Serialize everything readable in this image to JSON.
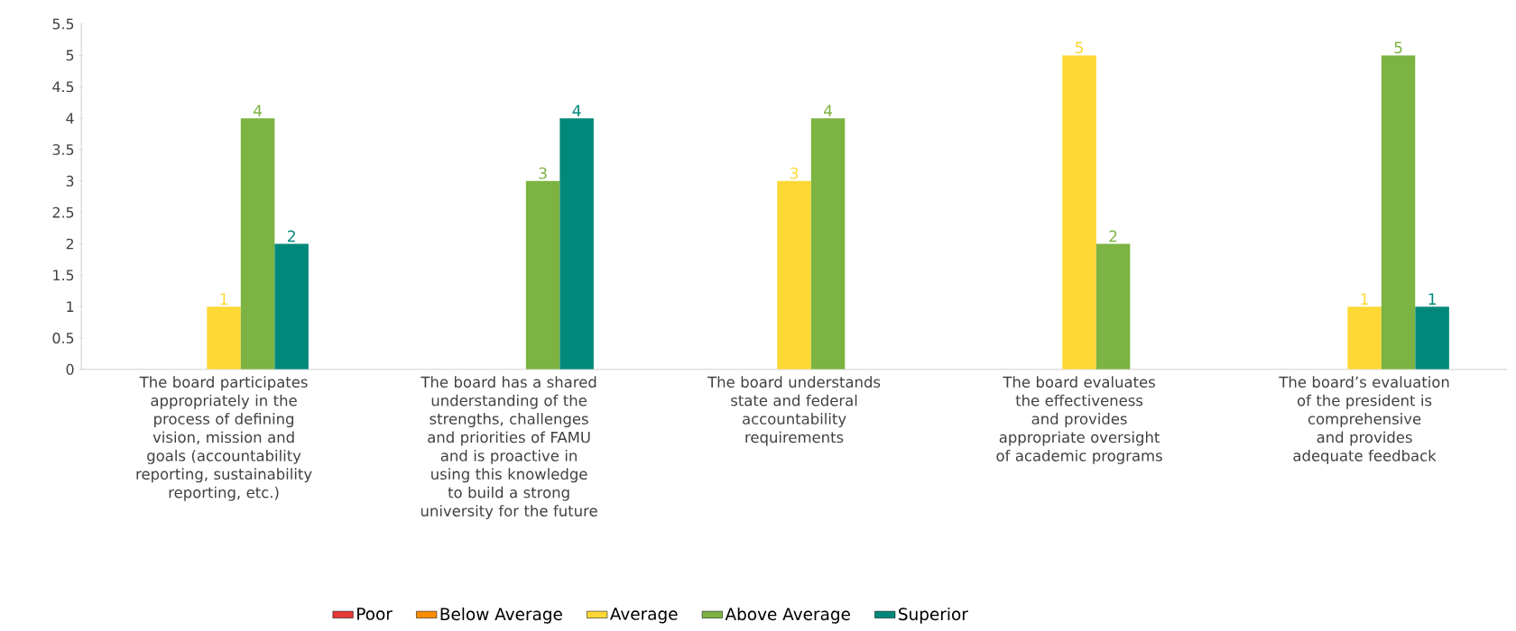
{
  "chart_data": {
    "type": "bar",
    "categories": [
      "The board participates appropriately in the process of defining vision, mission and goals (accountability reporting, sustainability reporting, etc.)",
      "The board has a shared understanding of the strengths, challenges and priorities of FAMU and is proactive in using this knowledge to build a strong university for the future",
      "The board understands state and federal accountability requirements",
      "The board evaluates the effectiveness and provides appropriate oversight of academic programs",
      "The board’s evaluation of the president is comprehensive and provides adequate feedback"
    ],
    "series": [
      {
        "name": "Poor",
        "color": "#e53935",
        "values": [
          0,
          0,
          0,
          0,
          0
        ],
        "value_labels": [
          null,
          null,
          null,
          null,
          null
        ]
      },
      {
        "name": "Below Average",
        "color": "#fb8c00",
        "values": [
          0,
          0,
          0,
          0,
          0
        ],
        "value_labels": [
          null,
          null,
          null,
          null,
          null
        ]
      },
      {
        "name": "Average",
        "color": "#fdd835",
        "values": [
          1,
          0,
          3,
          5,
          1
        ],
        "value_labels": [
          "1",
          null,
          "3",
          "5",
          "1"
        ]
      },
      {
        "name": "Above Average",
        "color": "#7cb342",
        "values": [
          4,
          3,
          4,
          2,
          5
        ],
        "value_labels": [
          "4",
          "3",
          "4",
          "2",
          "5"
        ]
      },
      {
        "name": "Superior",
        "color": "#00897b",
        "values": [
          2,
          4,
          0,
          0,
          1
        ],
        "value_labels": [
          "2",
          "4",
          null,
          null,
          "1"
        ]
      }
    ],
    "ylim": [
      0,
      5.5
    ],
    "yticks": [
      0,
      0.5,
      1,
      1.5,
      2,
      2.5,
      3,
      3.5,
      4,
      4.5,
      5,
      5.5
    ],
    "grid": false,
    "legend": "bottom"
  }
}
